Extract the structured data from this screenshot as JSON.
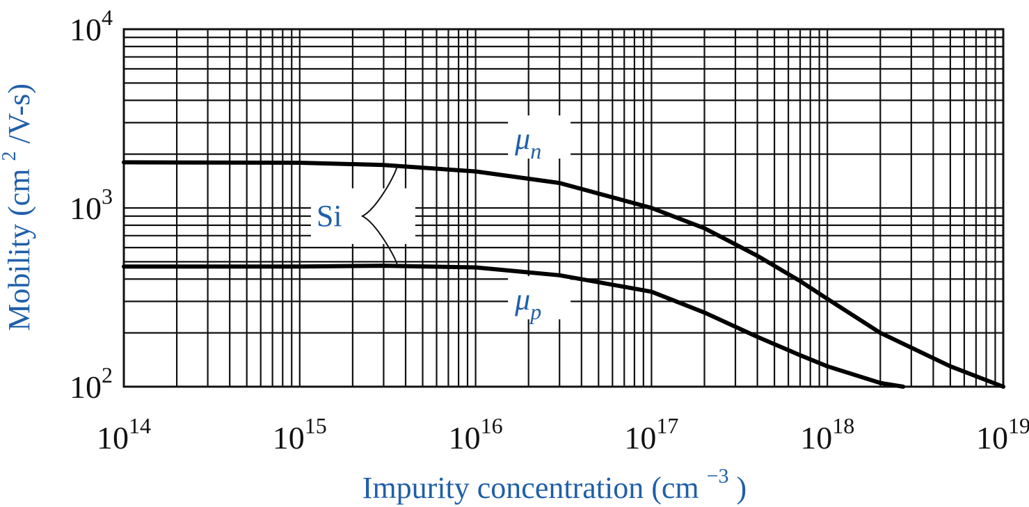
{
  "chart_data": {
    "type": "line",
    "title": "",
    "xlabel": {
      "main": "Impurity concentration (cm",
      "sup": "−3",
      "tail": ")"
    },
    "ylabel": {
      "main": "Mobility (cm",
      "sup": "2",
      "tail": "/V-s)"
    },
    "x_scale": "log",
    "y_scale": "log",
    "xlim": [
      100000000000000.0,
      1e+19
    ],
    "ylim": [
      100,
      10000
    ],
    "grid": true,
    "x_ticks": [
      {
        "base": "10",
        "exp": "14",
        "value": 100000000000000.0
      },
      {
        "base": "10",
        "exp": "15",
        "value": 1000000000000000.0
      },
      {
        "base": "10",
        "exp": "16",
        "value": 1e+16
      },
      {
        "base": "10",
        "exp": "17",
        "value": 1e+17
      },
      {
        "base": "10",
        "exp": "18",
        "value": 1e+18
      },
      {
        "base": "10",
        "exp": "19",
        "value": 1e+19
      }
    ],
    "y_ticks": [
      {
        "base": "10",
        "exp": "2",
        "value": 100
      },
      {
        "base": "10",
        "exp": "3",
        "value": 1000
      },
      {
        "base": "10",
        "exp": "4",
        "value": 10000
      }
    ],
    "series": [
      {
        "name_base": "μ",
        "name_sub": "n",
        "color": "#000000",
        "x": [
          100000000000000.0,
          1000000000000000.0,
          3000000000000000.0,
          1e+16,
          3e+16,
          1e+17,
          2e+17,
          4e+17,
          7e+17,
          1e+18,
          2e+18,
          5e+18,
          1e+19
        ],
        "y": [
          1800,
          1790,
          1740,
          1600,
          1380,
          1000,
          770,
          540,
          390,
          310,
          200,
          130,
          100
        ]
      },
      {
        "name_base": "μ",
        "name_sub": "p",
        "color": "#000000",
        "x": [
          100000000000000.0,
          1000000000000000.0,
          3000000000000000.0,
          1e+16,
          3e+16,
          1e+17,
          2e+17,
          4e+17,
          7e+17,
          1e+18,
          2e+18,
          2.7e+18
        ],
        "y": [
          470,
          470,
          475,
          465,
          420,
          340,
          260,
          190,
          150,
          130,
          105,
          100
        ]
      }
    ],
    "annotations": [
      {
        "text": "Si",
        "kind": "brace",
        "x": 2000000000000000.0,
        "y": 900
      },
      {
        "text_base": "μ",
        "text_sub": "n",
        "x": 1.8e+16,
        "y": 2300
      },
      {
        "text_base": "μ",
        "text_sub": "p",
        "x": 1.8e+16,
        "y": 290
      }
    ],
    "colors": {
      "text_accent": "#1f5fa8",
      "grid": "#111111",
      "line": "#000000"
    }
  }
}
